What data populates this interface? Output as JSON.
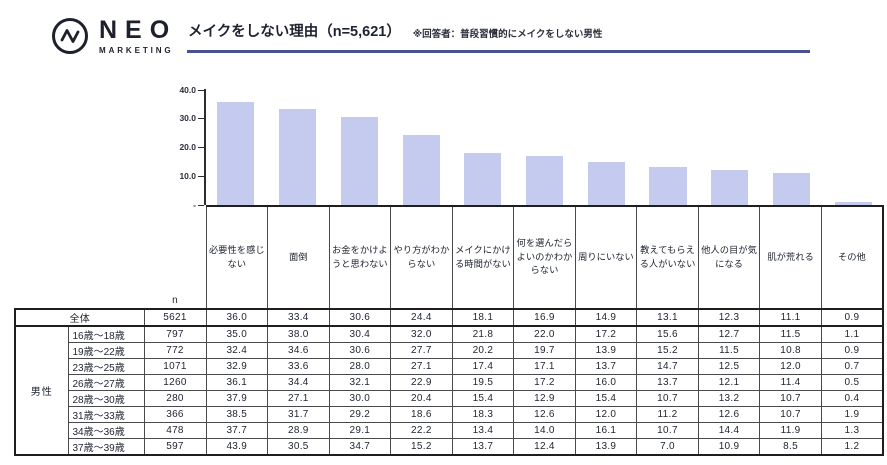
{
  "brand": {
    "name": "NEO",
    "sub": "MARKETING"
  },
  "header": {
    "title": "メイクをしない理由（n=5,621）",
    "note": "※回答者：普段習慣的にメイクをしない男性"
  },
  "colors": {
    "bar": "#c5cbee",
    "underline": "#4a5191",
    "axis": "#2c2c2c"
  },
  "chart": {
    "yticks": [
      "40.0",
      "30.0",
      "20.0",
      "10.0",
      "-"
    ]
  },
  "chart_data": {
    "type": "bar",
    "title": "メイクをしない理由（n=5,621）",
    "categories": [
      "必要性を感じない",
      "面倒",
      "お金をかけようと思わない",
      "やり方がわからない",
      "メイクにかける時間がない",
      "何を選んだらよいのかわからない",
      "周りにいない",
      "教えてもらえる人がいない",
      "他人の目が気になる",
      "肌が荒れる",
      "その他"
    ],
    "values": [
      36.0,
      33.4,
      30.6,
      24.4,
      18.1,
      16.9,
      14.9,
      13.1,
      12.3,
      11.1,
      0.9
    ],
    "xlabel": "",
    "ylabel": "",
    "ylim": [
      0,
      40
    ],
    "grid": false,
    "legend": "none"
  },
  "table": {
    "n_label": "n",
    "overall_label": "全体",
    "group_label": "男性",
    "columns": [
      "必要性を感じない",
      "面倒",
      "お金をかけようと思わない",
      "やり方がわからない",
      "メイクにかける時間がない",
      "何を選んだらよいのかわからない",
      "周りにいない",
      "教えてもらえる人がいない",
      "他人の目が気になる",
      "肌が荒れる",
      "その他"
    ],
    "rows": [
      {
        "label": "全体",
        "n": "5621",
        "values": [
          "36.0",
          "33.4",
          "30.6",
          "24.4",
          "18.1",
          "16.9",
          "14.9",
          "13.1",
          "12.3",
          "11.1",
          "0.9"
        ]
      },
      {
        "label": "16歳～18歳",
        "n": "797",
        "values": [
          "35.0",
          "38.0",
          "30.4",
          "32.0",
          "21.8",
          "22.0",
          "17.2",
          "15.6",
          "12.7",
          "11.5",
          "1.1"
        ]
      },
      {
        "label": "19歳～22歳",
        "n": "772",
        "values": [
          "32.4",
          "34.6",
          "30.6",
          "27.7",
          "20.2",
          "19.7",
          "13.9",
          "15.2",
          "11.5",
          "10.8",
          "0.9"
        ]
      },
      {
        "label": "23歳～25歳",
        "n": "1071",
        "values": [
          "32.9",
          "33.6",
          "28.0",
          "27.1",
          "17.4",
          "17.1",
          "13.7",
          "14.7",
          "12.5",
          "12.0",
          "0.7"
        ]
      },
      {
        "label": "26歳～27歳",
        "n": "1260",
        "values": [
          "36.1",
          "34.4",
          "32.1",
          "22.9",
          "19.5",
          "17.2",
          "16.0",
          "13.7",
          "12.1",
          "11.4",
          "0.5"
        ]
      },
      {
        "label": "28歳～30歳",
        "n": "280",
        "values": [
          "37.9",
          "27.1",
          "30.0",
          "20.4",
          "15.4",
          "12.9",
          "15.4",
          "10.7",
          "13.2",
          "10.7",
          "0.4"
        ]
      },
      {
        "label": "31歳～33歳",
        "n": "366",
        "values": [
          "38.5",
          "31.7",
          "29.2",
          "18.6",
          "18.3",
          "12.6",
          "12.0",
          "11.2",
          "12.6",
          "10.7",
          "1.9"
        ]
      },
      {
        "label": "34歳～36歳",
        "n": "478",
        "values": [
          "37.7",
          "28.9",
          "29.1",
          "22.2",
          "13.4",
          "14.0",
          "16.1",
          "10.7",
          "14.4",
          "11.9",
          "1.3"
        ]
      },
      {
        "label": "37歳～39歳",
        "n": "597",
        "values": [
          "43.9",
          "30.5",
          "34.7",
          "15.2",
          "13.7",
          "12.4",
          "13.9",
          "7.0",
          "10.9",
          "8.5",
          "1.2"
        ]
      }
    ]
  }
}
